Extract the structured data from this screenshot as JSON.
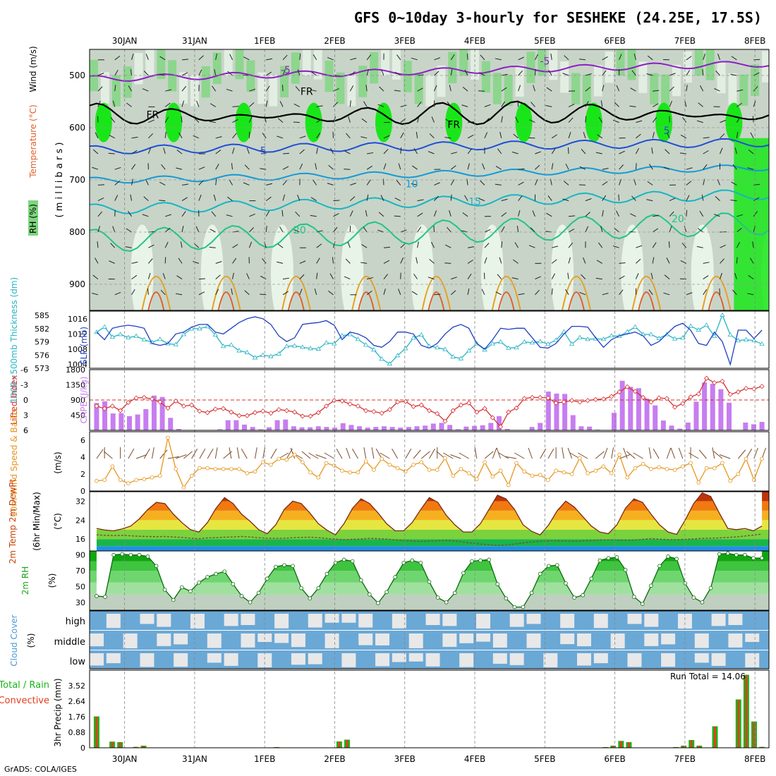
{
  "title": "GFS 0~10day 3-hourly for SESHEKE (24.25E, 17.5S)",
  "credit": "GrADS: COLA/IGES",
  "date_labels": [
    "30JAN",
    "31JAN",
    "1FEB",
    "2FEB",
    "3FEB",
    "4FEB",
    "5FEB",
    "6FEB",
    "7FEB",
    "8FEB"
  ],
  "colors": {
    "rh_light": "#e9f4e9",
    "rh_mid": "#c8d4c8",
    "rh_green": "#7ed67e",
    "rh_bright": "#19e619",
    "temp_m5": "#8c1fc4",
    "temp_5": "#1f4fd6",
    "temp_10": "#169ad6",
    "temp_15": "#19b5c4",
    "temp_20": "#22c486",
    "temp_warm": "#e6a020",
    "temp_hot": "#e0602a",
    "temp_max": "#e0109a",
    "slp": "#1f3fc4",
    "thickness": "#28b4c4",
    "lifted": "#d63030",
    "cape": "#c77df0",
    "wind": "#e6961e",
    "barb": "#7a4a2a",
    "rh2m": "#1aa51a",
    "cloud": "#6aa8d6",
    "cloud_clear": "#e8e8e8",
    "precip_total": "#19b519",
    "precip_conv": "#e63c1e"
  },
  "panels": {
    "upper": {
      "ylabel_rh": "RH (%)",
      "ylabel_temp": "Temperature (°C)",
      "ylabel_wind": "Wind (m/s)",
      "ylabel_pres": "( m i l l i b a r s )",
      "yticks": [
        500,
        600,
        700,
        800,
        900
      ],
      "contour_labels": [
        {
          "text": "-5",
          "color": "temp_m5",
          "time": 2.3,
          "p": 496
        },
        {
          "text": "-5",
          "color": "temp_m5",
          "time": 6.0,
          "p": 479
        },
        {
          "text": "FR",
          "color": "black",
          "time": 0.4,
          "p": 582
        },
        {
          "text": "FR",
          "color": "black",
          "time": 2.6,
          "p": 537
        },
        {
          "text": "FR",
          "color": "black",
          "time": 4.7,
          "p": 601
        },
        {
          "text": "5",
          "color": "temp_5",
          "time": 1.98,
          "p": 651
        },
        {
          "text": "5",
          "color": "temp_5",
          "time": 7.74,
          "p": 612
        },
        {
          "text": "10",
          "color": "temp_10",
          "time": 4.1,
          "p": 714
        },
        {
          "text": "15",
          "color": "temp_15",
          "time": 5.0,
          "p": 748
        },
        {
          "text": "20",
          "color": "temp_20",
          "time": 2.5,
          "p": 803
        },
        {
          "text": "20",
          "color": "temp_20",
          "time": 7.9,
          "p": 781
        }
      ]
    },
    "slp": {
      "ylabel_thick": "1000~500mb Thickness (dm)",
      "ylabel_slp": "SLP (mb)",
      "thick_ticks": [
        "585",
        "582",
        "579",
        "576",
        "573"
      ],
      "slp_ticks": [
        "1016",
        "1012",
        "1008",
        "1004"
      ]
    },
    "cape": {
      "ylabel_li": "Lifted Index",
      "ylabel_cape": "CAPE (J/kg)",
      "li_ticks": [
        "-6",
        "-3",
        "0",
        "3",
        "6"
      ],
      "cape_ticks": [
        "1800",
        "1350",
        "900",
        "450"
      ]
    },
    "wind10": {
      "ylabel": "10m Wind Speed & Barbs",
      "ylabel2": "(m/s)",
      "ticks": [
        "6",
        "4",
        "2",
        "0"
      ]
    },
    "temp2m": {
      "ylabel": "2m Temp 2m DewPt",
      "ylabel2": "(6hr Min/Max)",
      "ylabel3": "(°C)",
      "ticks": [
        "32",
        "24",
        "16"
      ]
    },
    "rh2m": {
      "ylabel": "2m RH",
      "ylabel2": "(%)",
      "ticks": [
        "90",
        "70",
        "50",
        "30"
      ]
    },
    "cloud": {
      "ylabel": "Cloud Cover",
      "ylabel2": "(%)",
      "levels": [
        "high",
        "middle",
        "low"
      ]
    },
    "precip": {
      "ylabel": "Total / Rain",
      "ylabel2": "Convective",
      "ylabel3": "3hr Precip (mm)",
      "ticks": [
        "3.52",
        "2.64",
        "1.76",
        "0.88",
        "0"
      ],
      "run_total": "Run Total = 14.06"
    }
  },
  "chart_data": {
    "type": "meteogram",
    "x_unit": "days from 00Z 30JAN",
    "x_range": [
      -0.5,
      9.2
    ],
    "pressure_range": [
      450,
      950
    ],
    "slp_range": [
      1003,
      1018
    ],
    "thickness_range": [
      573,
      586
    ],
    "li_range": [
      6,
      -6
    ],
    "cape_range": [
      0,
      1800
    ],
    "wind_range": [
      0,
      7
    ],
    "temp_range": [
      11,
      36
    ],
    "rh_range": [
      20,
      95
    ],
    "precip_range": [
      0,
      4.4
    ],
    "wind_speed": [
      1.2,
      1.3,
      2.9,
      1.3,
      0.9,
      1.3,
      1.4,
      1.6,
      1.8,
      6.3,
      2.6,
      0.4,
      1.8,
      2.7,
      2.7,
      2.6,
      2.6,
      2.6,
      2.6,
      2.1,
      2.3,
      3.4,
      3.1,
      3.8,
      3.7,
      4.3,
      3.4,
      2.2,
      1.6,
      3.3,
      3.0,
      2.4,
      2.2,
      2.2,
      3.5,
      2.5,
      3.8,
      3.1,
      2.7,
      2.3,
      3.1,
      3.4,
      2.5,
      2.5,
      3.9,
      1.8,
      2.6,
      2.1,
      1.4,
      3.4,
      1.7,
      2.4,
      0.7,
      3.3,
      2.3,
      1.8,
      1.9,
      1.3,
      2.4,
      2.2,
      2.0,
      3.9,
      2.1,
      2.4,
      2.9,
      2.1,
      4.3,
      1.6,
      2.7,
      3.2,
      2.6,
      2.8,
      2.6,
      2.5,
      2.9,
      3.3,
      1.0,
      2.7,
      2.7,
      3.3,
      1.2,
      2.0,
      3.8,
      1.3,
      3.8
    ],
    "wind_dir": [
      55,
      90,
      140,
      90,
      60,
      20,
      60,
      80,
      50,
      10,
      20,
      40,
      60,
      60,
      60,
      80,
      40,
      100,
      100,
      120,
      80,
      80,
      60,
      30,
      60,
      110,
      150,
      140,
      150,
      160,
      150,
      120,
      110,
      120,
      100,
      100,
      120,
      150,
      120,
      60,
      50,
      40,
      60,
      90,
      140,
      150,
      160,
      150,
      100,
      40,
      70,
      110,
      150,
      170,
      150,
      110,
      60,
      60,
      90,
      100,
      110,
      150,
      150,
      40,
      70,
      80,
      20,
      110,
      140,
      150,
      100,
      120,
      70,
      110,
      110,
      90,
      150,
      130,
      100,
      140,
      160,
      50,
      60,
      70,
      70
    ],
    "slp_mb": [
      1012.5,
      1010.5,
      1013.5,
      1014.0,
      1014.3,
      1014.0,
      1013.5,
      1009.5,
      1009.0,
      1009.5,
      1012.0,
      1012.5,
      1013.8,
      1014.5,
      1014.5,
      1012.5,
      1012.0,
      1013.5,
      1015.0,
      1016.0,
      1016.5,
      1016.0,
      1014.5,
      1011.5,
      1010.0,
      1011.0,
      1014.5,
      1014.8,
      1015.0,
      1015.5,
      1014.3,
      1010.5,
      1012.5,
      1012.0,
      1011.0,
      1009.0,
      1008.5,
      1010.0,
      1012.5,
      1012.5,
      1012.0,
      1009.0,
      1008.3,
      1009.5,
      1012.0,
      1013.8,
      1014.5,
      1013.5,
      1009.5,
      1008.0,
      1010.5,
      1013.5,
      1013.2,
      1013.5,
      1013.5,
      1011.0,
      1008.5,
      1008.3,
      1009.5,
      1012.0,
      1014.0,
      1014.0,
      1013.8,
      1011.0,
      1008.5,
      1010.5,
      1011.5,
      1012.0,
      1012.5,
      1011.5,
      1009.0,
      1010.0,
      1012.0,
      1014.0,
      1014.8,
      1013.0,
      1009.5,
      1009.0,
      1012.5,
      1010.0,
      1004.0,
      1013.0,
      1013.0,
      1010.8,
      1013.0
    ],
    "thickness_dm": [
      581.2,
      582.4,
      580.1,
      580.7,
      580.0,
      580.3,
      579.5,
      578.9,
      579.6,
      578.6,
      578.4,
      580.7,
      582.0,
      582.0,
      582.5,
      580.6,
      578.0,
      578.3,
      577.0,
      576.6,
      575.4,
      576.0,
      575.7,
      576.3,
      578.0,
      578.1,
      577.8,
      577.5,
      577.4,
      578.8,
      578.6,
      580.4,
      580.7,
      579.6,
      578.3,
      577.2,
      575.1,
      574.0,
      575.9,
      577.5,
      579.9,
      580.6,
      578.0,
      577.7,
      577.3,
      575.6,
      575.2,
      577.0,
      578.6,
      577.2,
      578.6,
      579.0,
      577.6,
      577.7,
      579.0,
      578.8,
      579.1,
      578.5,
      579.4,
      581.3,
      578.5,
      580.0,
      579.6,
      579.7,
      579.6,
      580.4,
      580.3,
      581.3,
      582.4,
      580.7,
      580.7,
      579.8,
      580.7,
      579.7,
      579.9,
      582.6,
      581.7,
      582.8,
      580.3,
      585.1,
      580.6,
      579.3,
      579.5,
      579.3,
      578.5
    ],
    "lifted_index": [
      1.2,
      1.7,
      1.2,
      2.1,
      0.5,
      -0.4,
      -0.5,
      -0.2,
      0.4,
      1.6,
      0.2,
      1.2,
      1.0,
      2.2,
      2.5,
      1.8,
      1.7,
      2.4,
      3.1,
      3.1,
      2.5,
      2.2,
      2.6,
      1.9,
      2.1,
      2.4,
      3.2,
      3.2,
      2.5,
      1.2,
      0.1,
      0.2,
      0.8,
      1.2,
      2.1,
      2.3,
      2.6,
      1.9,
      0.4,
      0.3,
      1.3,
      1.0,
      2.1,
      2.7,
      4.2,
      2.1,
      1.0,
      0.6,
      2.4,
      1.7,
      3.5,
      5.3,
      2.4,
      1.6,
      -0.3,
      -0.5,
      -0.5,
      -0.4,
      0.6,
      0.4,
      0.1,
      0.4,
      0.1,
      -0.1,
      -0.2,
      -0.7,
      -1.6,
      -2.6,
      -1.7,
      -0.5,
      0.4,
      -0.4,
      -0.3,
      1.4,
      0.7,
      -0.6,
      -1.2,
      -4.3,
      -3.4,
      -3.7,
      -1.1,
      -1.6,
      -2.3,
      -2.2,
      -2.7
    ],
    "cape_jkg": [
      810,
      860,
      500,
      510,
      420,
      470,
      630,
      1030,
      990,
      370,
      40,
      10,
      10,
      10,
      10,
      30,
      300,
      300,
      170,
      100,
      30,
      90,
      300,
      320,
      120,
      90,
      90,
      120,
      100,
      80,
      210,
      160,
      120,
      80,
      100,
      120,
      100,
      80,
      100,
      120,
      140,
      200,
      220,
      160,
      30,
      110,
      130,
      150,
      220,
      420,
      40,
      10,
      10,
      100,
      220,
      1150,
      1090,
      1080,
      450,
      120,
      110,
      20,
      10,
      520,
      1470,
      1290,
      1250,
      940,
      740,
      290,
      140,
      50,
      230,
      850,
      1420,
      1380,
      1220,
      820,
      10,
      230,
      180,
      250
    ],
    "temp_2m": [
      20.5,
      19.8,
      19.5,
      20.3,
      21.5,
      24.5,
      28.5,
      31.5,
      31.0,
      26.5,
      23.0,
      20.0,
      19.0,
      23.0,
      29.0,
      33.5,
      31.0,
      26.5,
      23.5,
      20.0,
      18.3,
      22.0,
      28.5,
      32.0,
      31.0,
      27.0,
      22.5,
      19.8,
      17.8,
      22.5,
      29.0,
      33.0,
      31.0,
      27.0,
      22.5,
      19.5,
      19.5,
      23.0,
      28.5,
      33.5,
      31.5,
      26.0,
      22.0,
      19.0,
      19.0,
      22.5,
      28.5,
      34.5,
      33.0,
      28.5,
      22.0,
      19.3,
      17.8,
      22.0,
      28.0,
      32.0,
      29.5,
      25.5,
      21.5,
      19.0,
      18.3,
      22.0,
      29.0,
      33.0,
      31.5,
      26.5,
      22.0,
      19.0,
      18.0,
      24.0,
      31.0,
      35.5,
      34.0,
      27.0,
      20.5,
      20.0,
      20.5,
      19.5,
      21.5
    ],
    "dewpt_2m": [
      17.8,
      17.6,
      17.5,
      17.6,
      17.4,
      17.2,
      17.1,
      17.0,
      17.1,
      16.9,
      16.7,
      16.4,
      16.2,
      16.5,
      16.6,
      16.8,
      16.9,
      17.1,
      16.9,
      16.6,
      16.4,
      16.3,
      16.4,
      16.6,
      16.7,
      16.8,
      16.6,
      16.3,
      16.0,
      15.8,
      15.9,
      16.1,
      16.3,
      16.2,
      16.0,
      15.7,
      15.4,
      15.2,
      15.0,
      15.1,
      15.3,
      15.5,
      15.2,
      14.7,
      14.3,
      13.9,
      13.6,
      13.4,
      13.5,
      13.9,
      14.4,
      14.8,
      15.1,
      15.3,
      15.3,
      15.2,
      15.1,
      15.3,
      15.4,
      15.6,
      15.7,
      15.6,
      15.5,
      15.6,
      15.9,
      16.2,
      16.0,
      15.8,
      15.8,
      15.9,
      16.1,
      16.3,
      16.4,
      16.5,
      16.7,
      16.9,
      17.3,
      17.7,
      18.1
    ],
    "rh_2m": [
      38,
      37,
      90,
      91,
      90,
      90,
      88,
      76,
      46,
      33,
      49,
      44,
      55,
      62,
      66,
      69,
      53,
      38,
      30,
      42,
      60,
      75,
      77,
      76,
      48,
      35,
      48,
      66,
      80,
      84,
      82,
      58,
      40,
      29,
      43,
      62,
      80,
      83,
      80,
      56,
      36,
      30,
      42,
      67,
      82,
      83,
      84,
      53,
      35,
      24,
      24,
      42,
      66,
      76,
      77,
      54,
      36,
      39,
      60,
      83,
      86,
      87,
      71,
      37,
      28,
      51,
      76,
      88,
      85,
      54,
      36,
      30,
      48,
      91,
      92,
      90,
      90,
      86,
      86
    ],
    "precip_total": [
      1.78,
      0,
      0.35,
      0.32,
      0,
      0.05,
      0.12,
      0,
      0,
      0,
      0,
      0,
      0,
      0,
      0,
      0,
      0,
      0,
      0,
      0,
      0,
      0,
      0,
      0.04,
      0,
      0,
      0,
      0,
      0,
      0,
      0,
      0.36,
      0.46,
      0,
      0,
      0,
      0,
      0,
      0,
      0,
      0,
      0,
      0,
      0,
      0,
      0,
      0,
      0,
      0,
      0,
      0,
      0,
      0,
      0,
      0,
      0,
      0,
      0,
      0,
      0,
      0,
      0,
      0,
      0,
      0,
      0.04,
      0.12,
      0.39,
      0.32,
      0,
      0,
      0,
      0,
      0,
      0.04,
      0.12,
      0.44,
      0.12,
      0,
      1.22,
      0,
      0,
      2.74,
      4.14,
      1.49,
      0.05
    ],
    "precip_conv": [
      1.75,
      0,
      0.33,
      0.3,
      0,
      0.05,
      0.11,
      0,
      0,
      0,
      0,
      0,
      0,
      0,
      0,
      0,
      0,
      0,
      0,
      0,
      0,
      0,
      0,
      0.04,
      0,
      0,
      0,
      0,
      0,
      0,
      0,
      0.34,
      0.44,
      0,
      0,
      0,
      0,
      0,
      0,
      0,
      0,
      0,
      0,
      0,
      0,
      0,
      0,
      0,
      0,
      0,
      0,
      0,
      0,
      0,
      0,
      0,
      0,
      0,
      0,
      0,
      0,
      0,
      0,
      0,
      0,
      0.04,
      0.11,
      0.37,
      0.3,
      0,
      0,
      0,
      0,
      0,
      0.04,
      0.11,
      0.42,
      0.11,
      0,
      1.2,
      0,
      0,
      2.7,
      4.1,
      1.45,
      0.05
    ]
  }
}
